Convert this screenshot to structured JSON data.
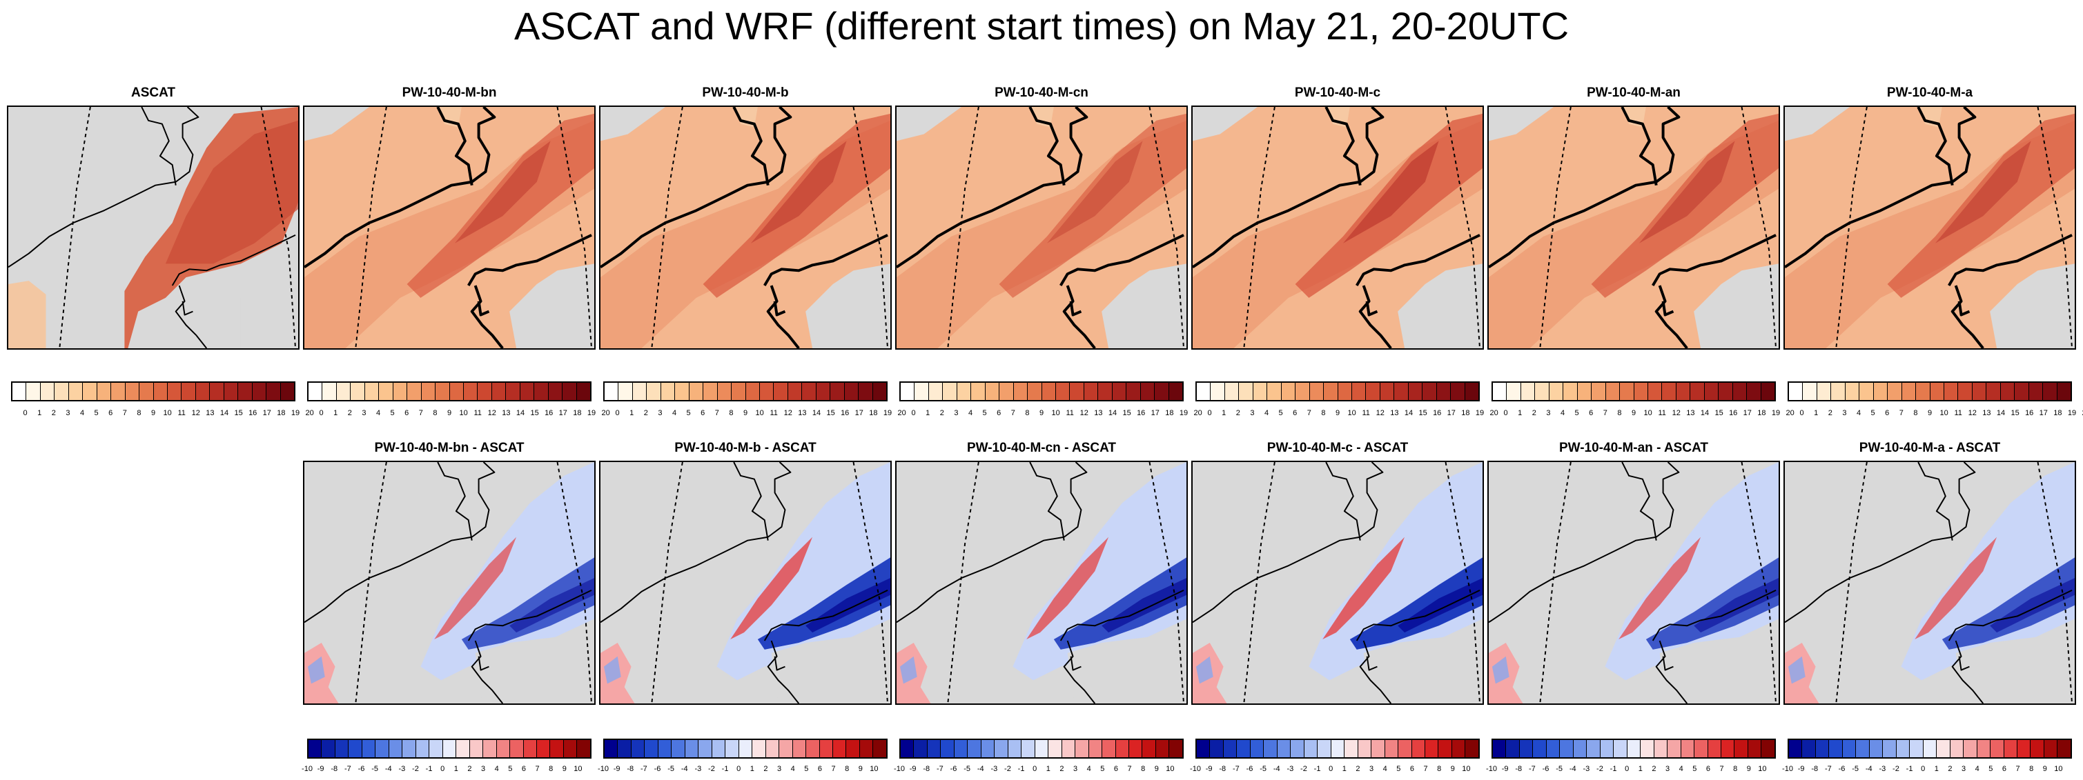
{
  "figure": {
    "title": "ASCAT and WRF (different start times) on May 21, 20-20UTC"
  },
  "top_row": [
    {
      "label": "ASCAT",
      "pattern": "ascat",
      "intensity": 0.65
    },
    {
      "label": "PW-10-40-M-bn",
      "pattern": "model",
      "intensity": 0.55
    },
    {
      "label": "PW-10-40-M-b",
      "pattern": "model",
      "intensity": 0.6
    },
    {
      "label": "PW-10-40-M-cn",
      "pattern": "model",
      "intensity": 0.45
    },
    {
      "label": "PW-10-40-M-c",
      "pattern": "model",
      "intensity": 0.68
    },
    {
      "label": "PW-10-40-M-an",
      "pattern": "model",
      "intensity": 0.58
    },
    {
      "label": "PW-10-40-M-a",
      "pattern": "model",
      "intensity": 0.58
    }
  ],
  "bottom_row": [
    {
      "label": "PW-10-40-M-bn - ASCAT",
      "strength": 0.7
    },
    {
      "label": "PW-10-40-M-b - ASCAT",
      "strength": 0.95
    },
    {
      "label": "PW-10-40-M-cn - ASCAT",
      "strength": 0.85
    },
    {
      "label": "PW-10-40-M-c - ASCAT",
      "strength": 1.0
    },
    {
      "label": "PW-10-40-M-an - ASCAT",
      "strength": 0.75
    },
    {
      "label": "PW-10-40-M-a - ASCAT",
      "strength": 0.75
    }
  ],
  "colorbars": {
    "speed": {
      "tick_labels": [
        "0",
        "1",
        "2",
        "3",
        "4",
        "5",
        "6",
        "7",
        "8",
        "9",
        "10",
        "11",
        "12",
        "13",
        "14",
        "15",
        "16",
        "17",
        "18",
        "19",
        "20"
      ],
      "colors": [
        "#ffffff",
        "#fff7e8",
        "#feecd2",
        "#fde0ba",
        "#fcd2a2",
        "#fbc48e",
        "#f7b27b",
        "#f29f6b",
        "#ec8b5b",
        "#e57a4d",
        "#de6842",
        "#d65739",
        "#cd4830",
        "#c13a29",
        "#b52e23",
        "#a8241e",
        "#9a1b19",
        "#8c1315",
        "#7d0c11",
        "#6b060c"
      ]
    },
    "difference": {
      "tick_labels": [
        "-10",
        "-9",
        "-8",
        "-7",
        "-6",
        "-5",
        "-4",
        "-3",
        "-2",
        "-1",
        "0",
        "1",
        "2",
        "3",
        "4",
        "5",
        "6",
        "7",
        "8",
        "9",
        "10"
      ],
      "colors": [
        "#00008e",
        "#0a1ea5",
        "#1534bb",
        "#2049cd",
        "#325ed8",
        "#4d76e0",
        "#6a8ee7",
        "#8aa7ed",
        "#a9bff3",
        "#c9d6f8",
        "#eaeefc",
        "#fbe4e4",
        "#f9c8c8",
        "#f5a6a6",
        "#f18484",
        "#ec6262",
        "#e54040",
        "#db2323",
        "#c41212",
        "#a50a0a",
        "#820303"
      ]
    }
  }
}
